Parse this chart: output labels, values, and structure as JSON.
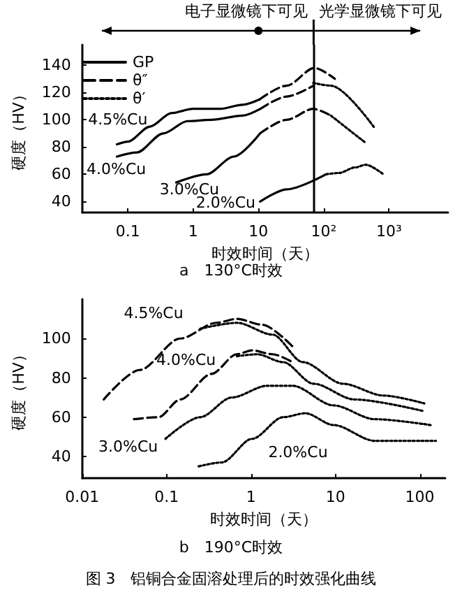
{
  "chart_data": [
    {
      "type": "line",
      "title": "a　130°C时效",
      "xlabel": "时效时间（天）",
      "ylabel": "硬度（HV）",
      "log": "x",
      "xlim": [
        0.02,
        8000
      ],
      "ylim": [
        32,
        155
      ],
      "xticks": [
        0.1,
        1,
        10,
        {
          "value": 100,
          "label": "10²"
        },
        {
          "value": 1000,
          "label": "10³"
        }
      ],
      "yticks": [
        40,
        60,
        80,
        100,
        120,
        140
      ],
      "legend": "top left",
      "grid": false,
      "ref_lines": [
        {
          "axis": "x",
          "value": 70
        }
      ],
      "annotations": [
        "电子显微镜下可见",
        "光学显微镜下可见",
        "4.5%Cu",
        "4.0%Cu",
        "3.0%Cu",
        "2.0%Cu"
      ],
      "series": [
        {
          "name": "GP",
          "color": "#000000",
          "line_style": "solid",
          "x": [
            0.068,
            0.1,
            0.218,
            0.47,
            1,
            2.6,
            5.7,
            10.5
          ],
          "values": [
            82,
            84,
            95,
            105,
            108,
            108,
            111,
            115
          ]
        },
        {
          "name": "θ″",
          "color": "#000000",
          "line_style": "dashed",
          "x": [
            10.5,
            27,
            72,
            148
          ],
          "values": [
            115,
            125,
            138,
            130
          ]
        },
        {
          "name": "θ′",
          "color": "#000000",
          "line_style": "dotted",
          "x": [
            69,
            129,
            600
          ],
          "values": [
            127,
            125,
            94
          ]
        },
        {
          "color": "#000000",
          "line_style": "solid",
          "x": [
            0.068,
            0.137,
            0.35,
            0.82,
            1.9,
            5.7,
            10.7
          ],
          "values": [
            73,
            76,
            90,
            99,
            100,
            103,
            108
          ]
        },
        {
          "color": "#000000",
          "line_style": "dashed",
          "x": [
            10.7,
            27,
            69
          ],
          "values": [
            108,
            117,
            125
          ]
        },
        {
          "color": "#000000",
          "line_style": "solid",
          "x": [
            0.55,
            1.6,
            4.2,
            10.6
          ],
          "values": [
            54,
            60,
            73,
            90
          ]
        },
        {
          "color": "#000000",
          "line_style": "dashed",
          "x": [
            10.6,
            27,
            69,
            129
          ],
          "values": [
            90,
            100,
            108,
            103
          ]
        },
        {
          "color": "#000000",
          "line_style": "dotted",
          "x": [
            129,
            440
          ],
          "values": [
            103,
            83
          ]
        },
        {
          "color": "#000000",
          "line_style": "solid",
          "x": [
            10.6,
            27,
            108
          ],
          "values": [
            40,
            49,
            60
          ]
        },
        {
          "color": "#000000",
          "line_style": "dotted",
          "x": [
            108,
            172,
            300,
            440,
            820
          ],
          "values": [
            60,
            61,
            65,
            67,
            60
          ]
        }
      ]
    },
    {
      "type": "line",
      "title": "b　190°C时效",
      "xlabel": "时效时间（天）",
      "ylabel": "硬度（HV）",
      "log": "x",
      "xlim": [
        0.01,
        200
      ],
      "ylim": [
        29,
        120
      ],
      "xticks": [
        0.01,
        0.1,
        1,
        10,
        100
      ],
      "yticks": [
        40,
        60,
        80,
        100
      ],
      "grid": false,
      "annotations": [
        "图 3　铝铜合金固溶处理后的时效强化曲线",
        "4.5%Cu",
        "4.0%Cu",
        "3.0%Cu",
        "2.0%Cu"
      ],
      "series": [
        {
          "color": "#000000",
          "line_style": "dashed",
          "x": [
            0.018,
            0.048,
            0.145,
            0.39,
            0.68,
            1.36,
            3.1
          ],
          "values": [
            69,
            84,
            100,
            108,
            110,
            107,
            96
          ]
        },
        {
          "color": "#000000",
          "line_style": "dotted",
          "x": [
            0.25,
            0.68,
            1.8,
            4.1,
            12.3,
            37,
            113
          ],
          "values": [
            105,
            108,
            102,
            88,
            77,
            71,
            67
          ]
        },
        {
          "color": "#000000",
          "line_style": "dashed",
          "x": [
            0.041,
            0.08,
            0.145,
            0.34,
            0.68,
            1.03,
            1.8,
            3.1
          ],
          "values": [
            59,
            60,
            69,
            82,
            92,
            94,
            92,
            88
          ]
        },
        {
          "color": "#000000",
          "line_style": "dotted",
          "x": [
            0.68,
            1.18,
            2.4,
            5.5,
            16.8,
            113
          ],
          "values": [
            91,
            92,
            88,
            77,
            69,
            63
          ]
        },
        {
          "color": "#000000",
          "line_style": "dotted",
          "x": [
            0.097,
            0.25,
            0.59,
            1.56,
            3.1,
            9.5,
            29,
            134
          ],
          "values": [
            49,
            60,
            70,
            76,
            76,
            66,
            59,
            56
          ]
        },
        {
          "color": "#000000",
          "line_style": "dotted",
          "x": [
            0.24,
            0.45,
            1.03,
            2.4,
            4.4,
            9.5,
            29,
            155
          ],
          "values": [
            35,
            37,
            49,
            60,
            62,
            56,
            48,
            48
          ]
        }
      ]
    }
  ]
}
